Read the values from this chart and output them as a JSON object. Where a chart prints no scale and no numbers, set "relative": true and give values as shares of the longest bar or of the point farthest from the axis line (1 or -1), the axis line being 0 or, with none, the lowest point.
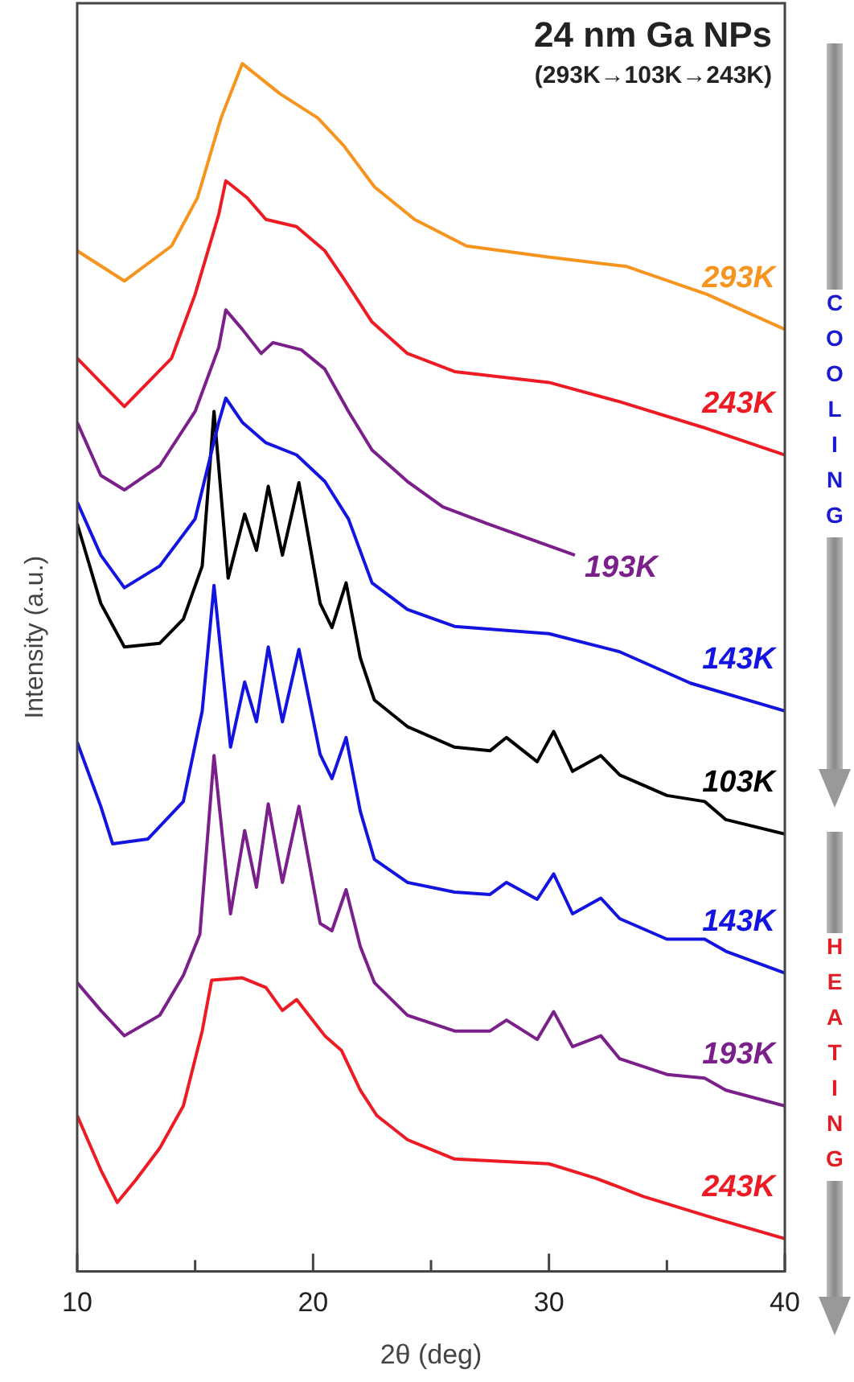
{
  "chart_data": {
    "type": "line",
    "relative": true,
    "title": "24 nm Ga NPs",
    "subtitle": "(293K→103K→243K)",
    "xlabel": "2θ (deg)",
    "ylabel": "Intensity (a.u.)",
    "xlim": [
      10,
      40
    ],
    "xticks": [
      10,
      {
        "value": 15,
        "label": null
      },
      20,
      {
        "value": 25,
        "label": null
      },
      30,
      {
        "value": 35,
        "label": null
      },
      40
    ],
    "grid": false,
    "legend": false,
    "marker": "none",
    "annotations": [
      "COOLING",
      "HEATING"
    ],
    "series": [
      {
        "name": "293K",
        "color": "#f7941d",
        "x": [
          10,
          12,
          14,
          15.1,
          16.1,
          17,
          18.6,
          20.2,
          21.3,
          22.6,
          24.3,
          26.5,
          29.9,
          33.3,
          36.7,
          40
        ],
        "values": [
          0.845,
          0.82,
          0.849,
          0.889,
          0.955,
          1,
          0.975,
          0.955,
          0.932,
          0.898,
          0.871,
          0.849,
          0.84,
          0.832,
          0.809,
          0.78
        ]
      },
      {
        "name": "243K",
        "color": "#ed1c24",
        "x": [
          10,
          12,
          14,
          15,
          16,
          16.3,
          17.2,
          18,
          19.3,
          20.5,
          21.3,
          22.5,
          24,
          26,
          30,
          33,
          36.5,
          40
        ],
        "values": [
          0.756,
          0.716,
          0.756,
          0.809,
          0.875,
          0.903,
          0.889,
          0.871,
          0.865,
          0.845,
          0.822,
          0.786,
          0.76,
          0.745,
          0.736,
          0.72,
          0.699,
          0.676
        ]
      },
      {
        "name": "193K",
        "color": "#7b1f8a",
        "x": [
          10,
          11,
          12,
          13.5,
          15,
          16,
          16.3,
          17,
          17.8,
          18.3,
          19.5,
          20.5,
          21.5,
          22.5,
          24,
          25.5,
          27.4,
          31.1
        ],
        "values": [
          0.703,
          0.659,
          0.647,
          0.667,
          0.712,
          0.765,
          0.796,
          0.78,
          0.76,
          0.769,
          0.763,
          0.747,
          0.712,
          0.68,
          0.654,
          0.633,
          0.619,
          0.593
        ]
      },
      {
        "name": "143K",
        "color": "#1414e0",
        "x": [
          10,
          11,
          12,
          13.5,
          15,
          16,
          16.3,
          17,
          18,
          19.3,
          20.5,
          21.5,
          22.5,
          24,
          26,
          30,
          33,
          36,
          40
        ],
        "values": [
          0.637,
          0.593,
          0.566,
          0.584,
          0.623,
          0.703,
          0.723,
          0.703,
          0.686,
          0.676,
          0.654,
          0.623,
          0.57,
          0.548,
          0.534,
          0.528,
          0.513,
          0.487,
          0.464
        ]
      },
      {
        "name": "103K",
        "color": "#000000",
        "x": [
          10,
          11,
          12,
          13.5,
          14.5,
          15.3,
          15.8,
          16.4,
          17.1,
          17.6,
          18.1,
          18.7,
          19.4,
          20.3,
          20.8,
          21.4,
          22,
          22.6,
          24,
          26,
          27.5,
          28.2,
          29.5,
          30.2,
          31,
          32.2,
          33,
          35,
          36.6,
          37.5,
          40
        ],
        "values": [
          0.619,
          0.553,
          0.517,
          0.52,
          0.54,
          0.584,
          0.712,
          0.574,
          0.627,
          0.597,
          0.65,
          0.593,
          0.653,
          0.553,
          0.533,
          0.57,
          0.508,
          0.473,
          0.451,
          0.434,
          0.431,
          0.442,
          0.422,
          0.447,
          0.414,
          0.427,
          0.411,
          0.394,
          0.389,
          0.374,
          0.362
        ]
      },
      {
        "name": "143K",
        "color": "#1414e0",
        "x": [
          10,
          11,
          11.5,
          13,
          14.5,
          15.3,
          15.8,
          16.5,
          17.1,
          17.6,
          18.1,
          18.7,
          19.4,
          20.3,
          20.8,
          21.4,
          22,
          22.6,
          24,
          26,
          27.5,
          28.2,
          29.5,
          30.2,
          31,
          32.2,
          33,
          35,
          36.6,
          37.5,
          40
        ],
        "values": [
          0.438,
          0.385,
          0.354,
          0.358,
          0.389,
          0.464,
          0.568,
          0.434,
          0.488,
          0.455,
          0.517,
          0.455,
          0.515,
          0.428,
          0.408,
          0.442,
          0.381,
          0.341,
          0.322,
          0.314,
          0.312,
          0.322,
          0.308,
          0.329,
          0.296,
          0.309,
          0.292,
          0.275,
          0.275,
          0.265,
          0.247
        ]
      },
      {
        "name": "193K",
        "color": "#7b1f8a",
        "x": [
          10,
          11,
          12,
          13.5,
          14.5,
          15.2,
          15.8,
          16.5,
          17.1,
          17.6,
          18.1,
          18.7,
          19.4,
          20.3,
          20.8,
          21.4,
          22,
          22.6,
          24,
          26,
          27.5,
          28.2,
          29.5,
          30.2,
          31,
          32.2,
          33,
          35,
          36.6,
          37.5,
          40
        ],
        "values": [
          0.239,
          0.216,
          0.195,
          0.212,
          0.245,
          0.279,
          0.427,
          0.296,
          0.365,
          0.318,
          0.387,
          0.322,
          0.385,
          0.288,
          0.282,
          0.316,
          0.269,
          0.239,
          0.212,
          0.199,
          0.199,
          0.208,
          0.192,
          0.215,
          0.186,
          0.195,
          0.176,
          0.163,
          0.16,
          0.15,
          0.137
        ]
      },
      {
        "name": "243K",
        "color": "#ed1c24",
        "x": [
          10,
          11,
          11.7,
          12.5,
          13.5,
          14.5,
          15.3,
          15.7,
          17,
          18,
          18.7,
          19.3,
          20.5,
          21.2,
          22,
          22.7,
          24,
          26,
          30,
          32,
          34,
          37,
          40
        ],
        "values": [
          0.129,
          0.084,
          0.057,
          0.076,
          0.102,
          0.137,
          0.199,
          0.241,
          0.243,
          0.235,
          0.216,
          0.225,
          0.195,
          0.183,
          0.15,
          0.129,
          0.109,
          0.093,
          0.089,
          0.077,
          0.062,
          0.044,
          0.027
        ]
      }
    ]
  }
}
